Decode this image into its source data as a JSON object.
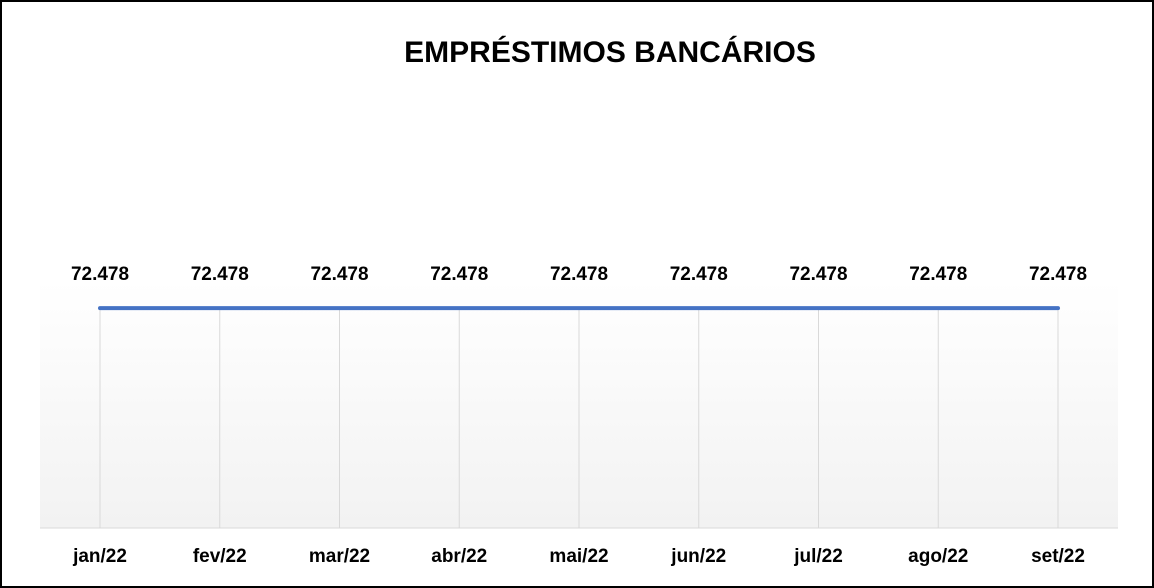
{
  "chart_data": {
    "type": "line",
    "title": "EMPRÉSTIMOS BANCÁRIOS",
    "categories": [
      "jan/22",
      "fev/22",
      "mar/22",
      "abr/22",
      "mai/22",
      "jun/22",
      "jul/22",
      "ago/22",
      "set/22"
    ],
    "values": [
      72478,
      72478,
      72478,
      72478,
      72478,
      72478,
      72478,
      72478,
      72478
    ],
    "value_labels": [
      "72.478",
      "72.478",
      "72.478",
      "72.478",
      "72.478",
      "72.478",
      "72.478",
      "72.478",
      "72.478"
    ],
    "color": "#4472c4",
    "ylim": [
      0,
      90000
    ],
    "grid": true
  }
}
